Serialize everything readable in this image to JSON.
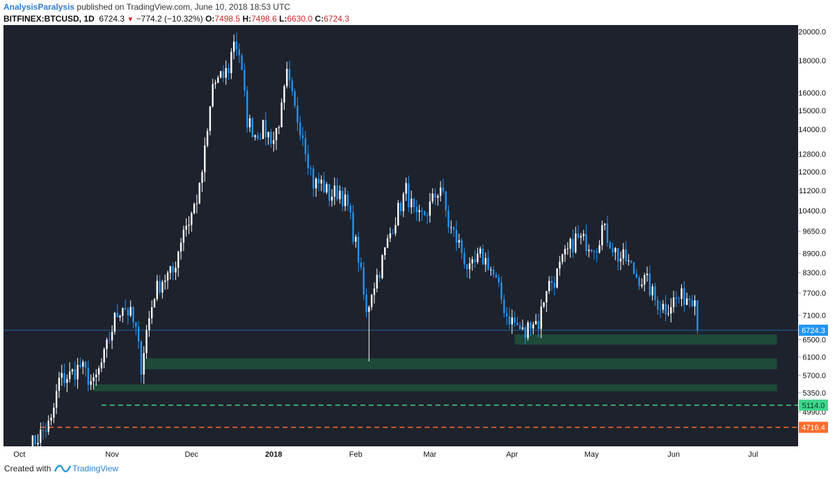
{
  "header": {
    "username": "AnalysisParalysis",
    "published_text": "published on TradingView.com, June 10, 2018 18:53 UTC",
    "symbol": "BITFINEX:BTCUSD, 1D",
    "last": "6724.3",
    "change": "−774.2 (−10.32%)",
    "o_label": "O:",
    "o_value": "7498.5",
    "h_label": "H:",
    "h_value": "7498.6",
    "l_label": "L:",
    "l_value": "6630.0",
    "c_label": "C:",
    "c_value": "6724.3"
  },
  "footer": {
    "created_with": "Created with",
    "brand": "TradingView"
  },
  "colors": {
    "background": "#1e222d",
    "up": "#ffffff",
    "down": "#2196f3",
    "zone": "#1f4d39",
    "support_green": "#3dd68c",
    "support_orange": "#ff6d2e",
    "price_tag": "#2196f3"
  },
  "chart_data": {
    "type": "candlestick",
    "symbol": "BITFINEX:BTCUSD",
    "interval": "1D",
    "y_scale": "log",
    "ylim": [
      4400,
      20500
    ],
    "y_ticks": [
      "20000.0",
      "18000.0",
      "16000.0",
      "15000.0",
      "14000.0",
      "12800.0",
      "12000.0",
      "11200.0",
      "10400.0",
      "9650.0",
      "8900.0",
      "8300.0",
      "7700.0",
      "7100.0",
      "6500.0",
      "6100.0",
      "5700.0",
      "5350.0",
      "4990.0"
    ],
    "x_ticks": [
      "Oct",
      "Nov",
      "Dec",
      "2018",
      "Feb",
      "Mar",
      "Apr",
      "May",
      "Jun",
      "Jul"
    ],
    "last_price_label": "6724.3",
    "price_levels": [
      {
        "label": "5114.0",
        "style": "dashed",
        "color": "#3dd68c"
      },
      {
        "label": "4716.4",
        "style": "dashed",
        "color": "#ff6d2e"
      }
    ],
    "zones": [
      {
        "from_date": "2018-04-02",
        "to_date": "2018-07-10",
        "low": 6380,
        "high": 6620
      },
      {
        "from_date": "2017-11-13",
        "to_date": "2018-07-10",
        "low": 5830,
        "high": 6070
      },
      {
        "from_date": "2017-10-25",
        "to_date": "2018-07-10",
        "low": 5380,
        "high": 5520
      }
    ],
    "path": [
      [
        "2017-10-01",
        4400
      ],
      [
        "2017-10-05",
        4600
      ],
      [
        "2017-10-09",
        4800
      ],
      [
        "2017-10-12",
        5600
      ],
      [
        "2017-10-16",
        5700
      ],
      [
        "2017-10-20",
        5900
      ],
      [
        "2017-10-25",
        5500
      ],
      [
        "2017-10-29",
        6100
      ],
      [
        "2017-11-02",
        7000
      ],
      [
        "2017-11-05",
        7400
      ],
      [
        "2017-11-08",
        7100
      ],
      [
        "2017-11-10",
        6700
      ],
      [
        "2017-11-12",
        5900
      ],
      [
        "2017-11-14",
        6700
      ],
      [
        "2017-11-17",
        7700
      ],
      [
        "2017-11-20",
        8100
      ],
      [
        "2017-11-24",
        8300
      ],
      [
        "2017-11-28",
        9800
      ],
      [
        "2017-11-30",
        10000
      ],
      [
        "2017-12-04",
        11200
      ],
      [
        "2017-12-07",
        13800
      ],
      [
        "2017-12-09",
        16500
      ],
      [
        "2017-12-12",
        16800
      ],
      [
        "2017-12-15",
        17500
      ],
      [
        "2017-12-17",
        19500
      ],
      [
        "2017-12-19",
        18500
      ],
      [
        "2017-12-22",
        14500
      ],
      [
        "2017-12-25",
        13800
      ],
      [
        "2017-12-28",
        14000
      ],
      [
        "2018-01-01",
        13500
      ],
      [
        "2018-01-04",
        15000
      ],
      [
        "2018-01-06",
        17000
      ],
      [
        "2018-01-09",
        15000
      ],
      [
        "2018-01-12",
        13800
      ],
      [
        "2018-01-16",
        11500
      ],
      [
        "2018-01-19",
        11500
      ],
      [
        "2018-01-22",
        11000
      ],
      [
        "2018-01-26",
        11200
      ],
      [
        "2018-01-29",
        10500
      ],
      [
        "2018-02-02",
        8800
      ],
      [
        "2018-02-05",
        7100
      ],
      [
        "2018-02-07",
        7800
      ],
      [
        "2018-02-10",
        8400
      ],
      [
        "2018-02-15",
        9900
      ],
      [
        "2018-02-20",
        11200
      ],
      [
        "2018-02-24",
        10000
      ],
      [
        "2018-02-28",
        10400
      ],
      [
        "2018-03-05",
        11400
      ],
      [
        "2018-03-08",
        9900
      ],
      [
        "2018-03-12",
        9200
      ],
      [
        "2018-03-16",
        8300
      ],
      [
        "2018-03-20",
        8800
      ],
      [
        "2018-03-23",
        8600
      ],
      [
        "2018-03-26",
        8000
      ],
      [
        "2018-03-30",
        7100
      ],
      [
        "2018-04-02",
        6900
      ],
      [
        "2018-04-06",
        6600
      ],
      [
        "2018-04-08",
        7000
      ],
      [
        "2018-04-11",
        6900
      ],
      [
        "2018-04-14",
        7900
      ],
      [
        "2018-04-17",
        8100
      ],
      [
        "2018-04-21",
        8800
      ],
      [
        "2018-04-25",
        9400
      ],
      [
        "2018-04-28",
        9300
      ],
      [
        "2018-05-03",
        9200
      ],
      [
        "2018-05-05",
        9800
      ],
      [
        "2018-05-08",
        9300
      ],
      [
        "2018-05-11",
        8800
      ],
      [
        "2018-05-14",
        8700
      ],
      [
        "2018-05-18",
        8200
      ],
      [
        "2018-05-22",
        8000
      ],
      [
        "2018-05-25",
        7500
      ],
      [
        "2018-05-29",
        7300
      ],
      [
        "2018-06-01",
        7500
      ],
      [
        "2018-06-05",
        7600
      ],
      [
        "2018-06-08",
        7600
      ],
      [
        "2018-06-09",
        7498.5
      ],
      [
        "2018-06-10",
        6724.3
      ]
    ]
  }
}
